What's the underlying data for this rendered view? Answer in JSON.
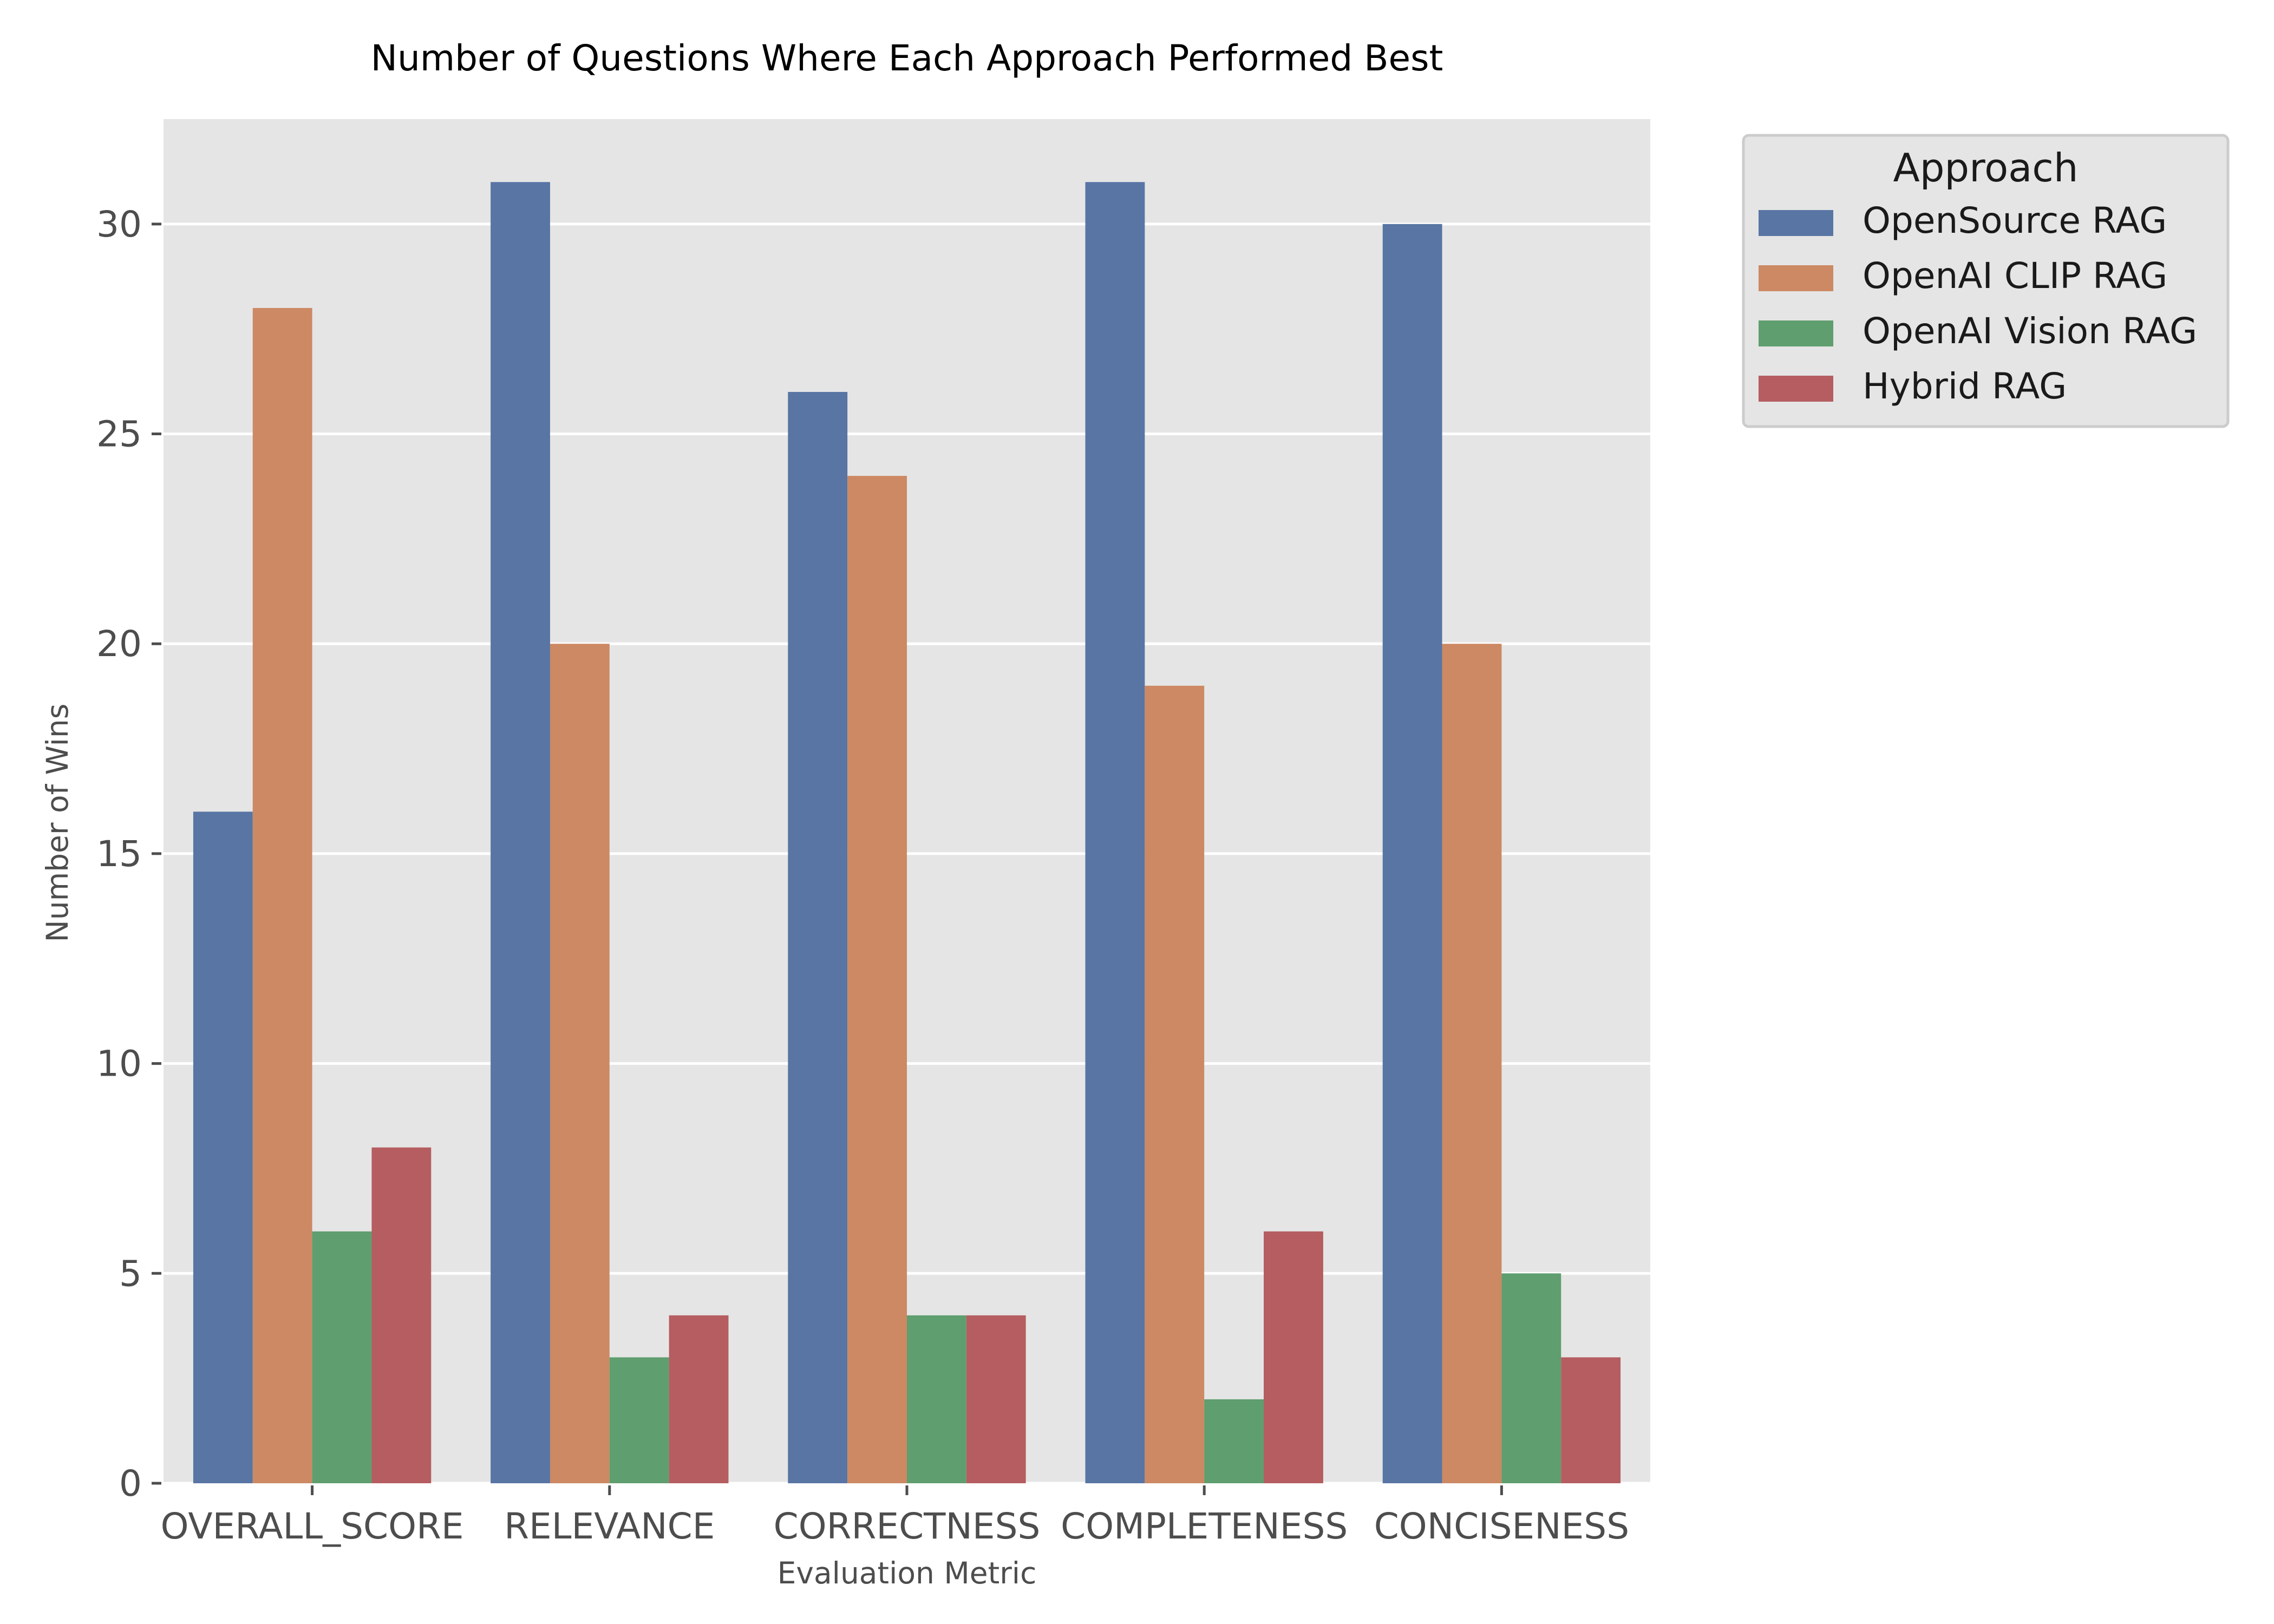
{
  "chart_data": {
    "type": "bar",
    "title": "Number of Questions Where Each Approach Performed Best",
    "xlabel": "Evaluation Metric",
    "ylabel": "Number of Wins",
    "categories": [
      "OVERALL_SCORE",
      "RELEVANCE",
      "CORRECTNESS",
      "COMPLETENESS",
      "CONCISENESS"
    ],
    "series": [
      {
        "name": "OpenSource RAG",
        "color": "#5875a4",
        "values": [
          16,
          31,
          26,
          31,
          30
        ]
      },
      {
        "name": "OpenAI CLIP RAG",
        "color": "#cc8963",
        "values": [
          28,
          20,
          24,
          19,
          20
        ]
      },
      {
        "name": "OpenAI Vision RAG",
        "color": "#5f9e6e",
        "values": [
          6,
          3,
          4,
          2,
          5
        ]
      },
      {
        "name": "Hybrid RAG",
        "color": "#b55d60",
        "values": [
          8,
          4,
          4,
          6,
          3
        ]
      }
    ],
    "ylim": [
      0,
      32.5
    ],
    "yticks": [
      0,
      5,
      10,
      15,
      20,
      25,
      30
    ],
    "grid": true,
    "legend": {
      "title": "Approach",
      "placement": "outside-top-right"
    },
    "background": "#e5e5e5"
  }
}
